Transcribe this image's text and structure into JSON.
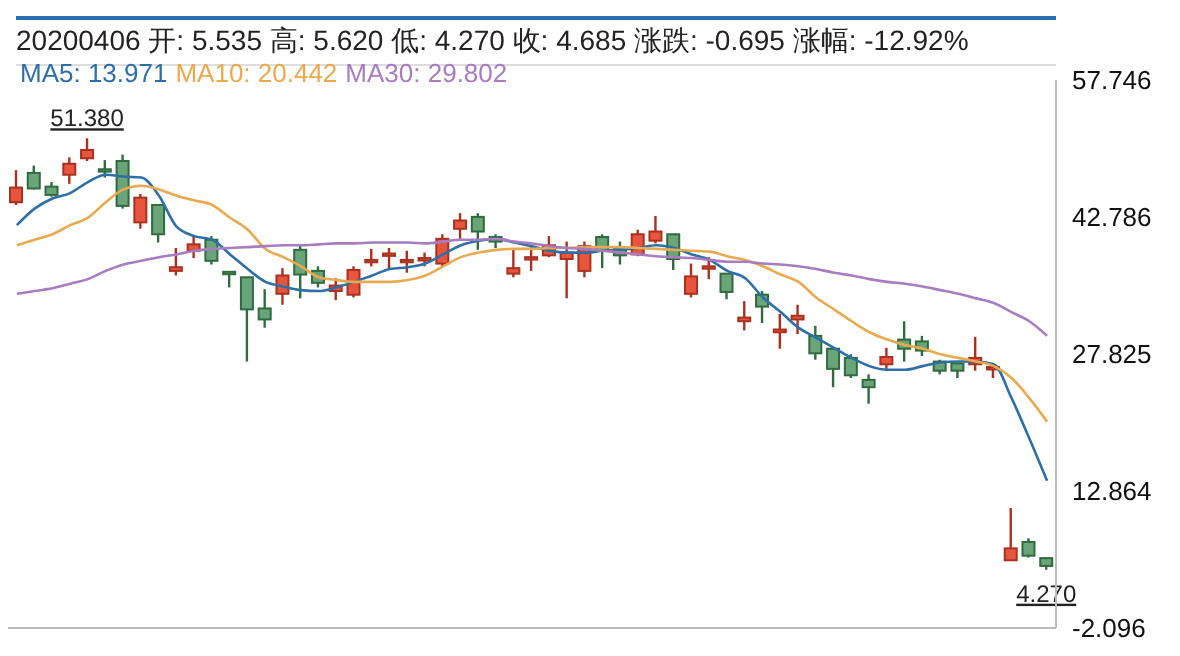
{
  "chart_data": {
    "type": "candlestick",
    "annotations": [
      "20200406 开: 5.535 高: 5.620 低: 4.270 收: 4.685 涨跌: -0.695 涨幅: -12.92%",
      {
        "text": "51.380",
        "y": 51.38
      },
      {
        "text": "4.270",
        "y": 4.27
      }
    ],
    "categories": [
      null,
      null,
      null,
      null,
      null,
      null,
      null,
      null,
      null,
      null,
      null,
      null,
      null,
      null,
      null,
      null,
      null,
      null,
      null,
      null,
      null,
      null,
      null,
      null,
      null,
      null,
      null,
      null,
      null,
      null,
      null,
      null,
      null,
      null,
      null,
      null,
      null,
      null,
      null,
      null,
      null,
      null,
      null,
      null,
      null,
      null,
      null,
      null,
      null,
      null,
      null,
      null,
      null,
      null,
      null,
      null,
      null,
      null,
      null
    ],
    "ohlc": [
      [
        44.4,
        47.9,
        44.1,
        46.0
      ],
      [
        47.6,
        48.4,
        45.8,
        45.9
      ],
      [
        46.1,
        46.6,
        45.0,
        45.2
      ],
      [
        47.4,
        49.3,
        46.4,
        48.6
      ],
      [
        49.2,
        51.38,
        48.9,
        50.1
      ],
      [
        48.0,
        49.0,
        47.1,
        47.9
      ],
      [
        48.9,
        49.6,
        43.7,
        44.0
      ],
      [
        42.2,
        45.3,
        41.5,
        44.9
      ],
      [
        44.1,
        44.1,
        40.0,
        40.9
      ],
      [
        36.9,
        39.4,
        36.4,
        37.3
      ],
      [
        39.1,
        40.6,
        38.3,
        39.8
      ],
      [
        40.3,
        40.7,
        37.6,
        38.0
      ],
      [
        36.8,
        36.8,
        35.1,
        36.7
      ],
      [
        36.2,
        36.2,
        27.0,
        32.7
      ],
      [
        32.8,
        34.9,
        30.7,
        31.6
      ],
      [
        34.4,
        37.2,
        33.2,
        36.4
      ],
      [
        39.2,
        39.7,
        33.9,
        36.5
      ],
      [
        36.9,
        37.4,
        35.1,
        35.6
      ],
      [
        34.7,
        36.1,
        33.7,
        35.3
      ],
      [
        34.3,
        37.4,
        34.0,
        37.0
      ],
      [
        38.0,
        39.3,
        37.4,
        38.1
      ],
      [
        38.7,
        39.4,
        37.1,
        38.8
      ],
      [
        38.0,
        39.1,
        36.7,
        38.1
      ],
      [
        38.2,
        38.9,
        37.4,
        38.3
      ],
      [
        37.7,
        40.9,
        37.4,
        40.4
      ],
      [
        41.5,
        43.2,
        40.4,
        42.4
      ],
      [
        42.8,
        43.2,
        39.2,
        41.2
      ],
      [
        40.6,
        40.9,
        39.4,
        40.1
      ],
      [
        36.6,
        39.2,
        36.2,
        37.2
      ],
      [
        38.3,
        39.7,
        36.9,
        38.4
      ],
      [
        38.6,
        40.7,
        38.4,
        39.7
      ],
      [
        38.2,
        40.1,
        33.9,
        38.9
      ],
      [
        36.9,
        40.1,
        36.2,
        39.6
      ],
      [
        40.6,
        40.9,
        37.2,
        39.1
      ],
      [
        39.3,
        40.1,
        37.6,
        38.6
      ],
      [
        38.7,
        41.4,
        38.5,
        40.9
      ],
      [
        40.2,
        42.9,
        39.9,
        41.2
      ],
      [
        40.9,
        40.9,
        37.0,
        38.2
      ],
      [
        34.4,
        37.7,
        34.0,
        36.3
      ],
      [
        37.3,
        38.4,
        36.0,
        37.4
      ],
      [
        36.6,
        36.6,
        33.8,
        34.6
      ],
      [
        31.4,
        33.6,
        30.4,
        31.8
      ],
      [
        34.3,
        34.7,
        31.2,
        33.0
      ],
      [
        30.2,
        32.2,
        28.4,
        30.5
      ],
      [
        31.6,
        33.2,
        30.0,
        32.0
      ],
      [
        29.8,
        30.9,
        27.2,
        27.9
      ],
      [
        28.4,
        28.4,
        24.2,
        26.2
      ],
      [
        27.4,
        27.8,
        25.2,
        25.5
      ],
      [
        25.0,
        25.6,
        22.4,
        24.2
      ],
      [
        26.7,
        28.5,
        26.0,
        27.5
      ],
      [
        29.4,
        31.4,
        27.0,
        28.4
      ],
      [
        29.2,
        29.8,
        27.6,
        28.2
      ],
      [
        27.0,
        27.2,
        25.6,
        26.0
      ],
      [
        26.8,
        26.8,
        25.2,
        26.0
      ],
      [
        26.7,
        29.7,
        26.0,
        27.4
      ],
      [
        26.3,
        26.5,
        25.2,
        26.4
      ],
      [
        5.3,
        11.0,
        5.3,
        6.6
      ],
      [
        7.3,
        7.7,
        5.6,
        5.8
      ],
      [
        5.535,
        5.62,
        4.27,
        4.685
      ]
    ],
    "colors": [
      "#e8553f",
      "#6aa57a",
      "#6aa57a",
      "#e8553f",
      "#e8553f",
      "#6aa57a",
      "#6aa57a",
      "#e8553f",
      "#6aa57a",
      "#e8553f",
      "#e8553f",
      "#6aa57a",
      "#6aa57a",
      "#6aa57a",
      "#6aa57a",
      "#e8553f",
      "#6aa57a",
      "#6aa57a",
      "#e8553f",
      "#e8553f",
      "#e8553f",
      "#e8553f",
      "#e8553f",
      "#e8553f",
      "#e8553f",
      "#e8553f",
      "#6aa57a",
      "#6aa57a",
      "#e8553f",
      "#e8553f",
      "#e8553f",
      "#e8553f",
      "#e8553f",
      "#6aa57a",
      "#6aa57a",
      "#e8553f",
      "#e8553f",
      "#6aa57a",
      "#e8553f",
      "#e8553f",
      "#6aa57a",
      "#e8553f",
      "#6aa57a",
      "#e8553f",
      "#e8553f",
      "#6aa57a",
      "#6aa57a",
      "#6aa57a",
      "#6aa57a",
      "#e8553f",
      "#6aa57a",
      "#6aa57a",
      "#6aa57a",
      "#6aa57a",
      "#e8553f",
      "#e8553f",
      "#e8553f",
      "#6aa57a",
      "#6aa57a"
    ],
    "series": [
      {
        "type": "line",
        "name": "MA5: 13.971",
        "color": "#2e6fa8",
        "values": [
          41.9,
          43.7,
          44.8,
          45.4,
          46.6,
          47.4,
          47.2,
          47.1,
          45.1,
          41.7,
          40.7,
          40.3,
          38.7,
          37.1,
          35.7,
          35.2,
          34.8,
          34.7,
          35.1,
          35.7,
          36.4,
          37.1,
          37.3,
          37.7,
          38.7,
          39.7,
          40.2,
          40.4,
          40.0,
          39.6,
          39.1,
          38.9,
          38.9,
          39.1,
          39.2,
          39.4,
          39.7,
          39.4,
          38.7,
          38.1,
          36.9,
          36.1,
          34.0,
          32.4,
          30.7,
          29.6,
          28.5,
          27.4,
          26.5,
          26.1,
          26.1,
          26.5,
          26.9,
          27.0,
          27.0,
          26.7,
          23.0,
          18.6,
          13.971
        ]
      },
      {
        "type": "line",
        "name": "MA10: 20.442",
        "color": "#e9a94f",
        "values": [
          39.7,
          40.3,
          40.9,
          41.9,
          42.7,
          44.4,
          45.8,
          46.2,
          45.8,
          45.1,
          44.6,
          44.1,
          42.7,
          41.4,
          39.3,
          38.4,
          37.4,
          36.2,
          35.9,
          35.7,
          35.7,
          35.7,
          35.9,
          36.4,
          37.4,
          38.4,
          38.9,
          39.2,
          39.3,
          39.3,
          39.4,
          39.4,
          39.5,
          39.5,
          39.5,
          39.4,
          39.3,
          39.2,
          39.1,
          39.0,
          38.5,
          38.1,
          37.4,
          36.5,
          35.7,
          34.0,
          32.7,
          31.4,
          30.2,
          29.4,
          28.8,
          28.4,
          27.8,
          27.4,
          27.0,
          26.5,
          25.2,
          23.0,
          20.442
        ]
      },
      {
        "type": "line",
        "name": "MA30: 29.802",
        "color": "#a77cc0",
        "values": [
          34.4,
          34.7,
          35.0,
          35.5,
          36.0,
          36.9,
          37.6,
          38.0,
          38.4,
          38.7,
          39.1,
          39.3,
          39.4,
          39.5,
          39.6,
          39.7,
          39.7,
          39.8,
          39.9,
          39.9,
          40.0,
          40.0,
          40.0,
          39.9,
          40.1,
          40.3,
          40.3,
          40.4,
          40.1,
          39.9,
          39.6,
          39.4,
          39.3,
          39.1,
          38.9,
          38.7,
          38.5,
          38.4,
          38.3,
          38.1,
          37.9,
          37.9,
          37.7,
          37.6,
          37.4,
          37.1,
          36.7,
          36.4,
          36.0,
          35.7,
          35.5,
          35.2,
          34.8,
          34.4,
          33.9,
          33.4,
          32.4,
          31.4,
          29.802
        ]
      }
    ],
    "ylim": [
      -2.096,
      57.746
    ],
    "yticks": [
      -2.096,
      12.864,
      27.825,
      42.786,
      57.746
    ],
    "tick_labels": "y",
    "legend": "top left"
  }
}
